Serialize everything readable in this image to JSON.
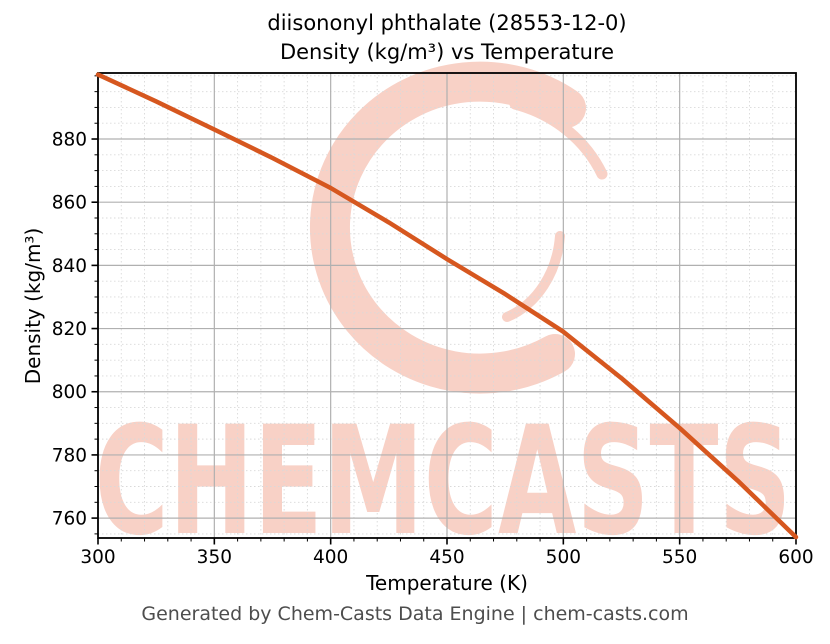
{
  "title": {
    "line1": "diisononyl phthalate (28553-12-0)",
    "line2": "Density (kg/m³) vs Temperature"
  },
  "axes": {
    "x_label": "Temperature (K)",
    "y_label": "Density (kg/m³)"
  },
  "footer": "Generated by Chem-Casts Data Engine | chem-casts.com",
  "watermark": {
    "text": "CHEMCASTS",
    "color": "#f8d1c6"
  },
  "colors": {
    "curve": "#d6571f",
    "grid_major": "#b0b0b0",
    "grid_minor": "#d9d9d9",
    "spine": "#000000",
    "tick_label": "#000000",
    "footer_text": "#4d4d4d"
  },
  "chart_data": {
    "type": "line",
    "title": "diisononyl phthalate (28553-12-0) Density (kg/m³) vs Temperature",
    "xlabel": "Temperature (K)",
    "ylabel": "Density (kg/m³)",
    "xlim": [
      300,
      600
    ],
    "ylim": [
      753.7,
      900.9
    ],
    "xticks": [
      300,
      350,
      400,
      450,
      500,
      550,
      600
    ],
    "yticks": [
      760,
      780,
      800,
      820,
      840,
      860,
      880
    ],
    "x_minor_step": 10,
    "y_minor_step": 5,
    "grid": true,
    "legend": "none",
    "series": [
      {
        "name": "density",
        "x": [
          300,
          325,
          350,
          375,
          400,
          425,
          450,
          475,
          500,
          525,
          550,
          575,
          600
        ],
        "y": [
          900.4,
          891.9,
          883.0,
          874.0,
          864.5,
          853.6,
          842.0,
          830.9,
          819.0,
          804.3,
          788.5,
          771.8,
          754.0
        ]
      }
    ]
  }
}
